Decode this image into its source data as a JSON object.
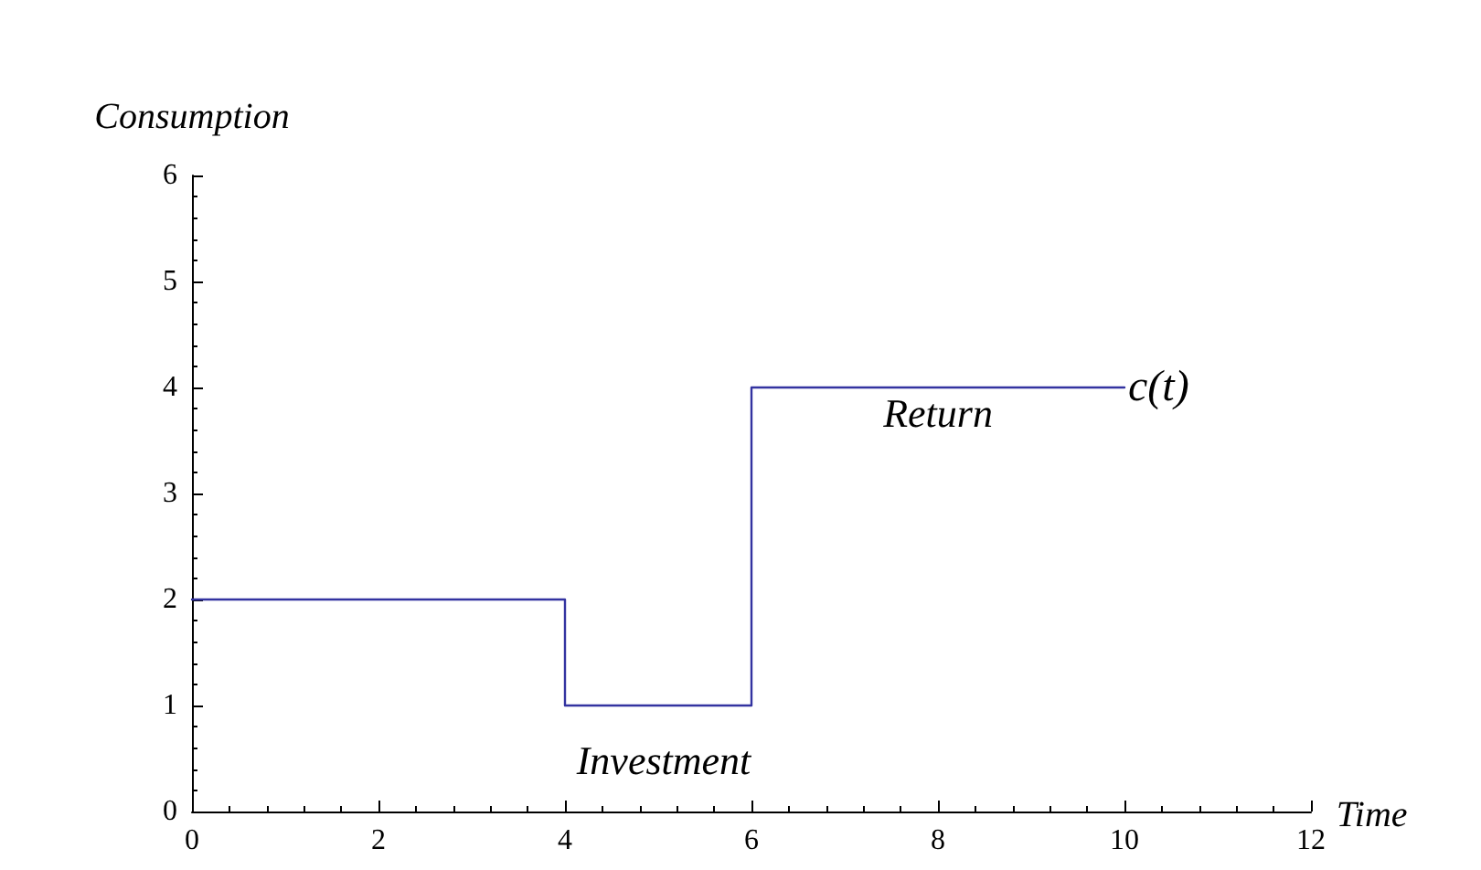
{
  "chart_data": {
    "type": "step",
    "xlabel": "Time",
    "ylabel": "Consumption",
    "x": [
      0,
      4,
      6,
      10
    ],
    "series": [
      {
        "name": "c(t)",
        "color": "#3333a0",
        "values": [
          2,
          1,
          4,
          4
        ]
      }
    ],
    "xlim": [
      0,
      12
    ],
    "xticks": [
      0,
      2,
      4,
      6,
      8,
      10,
      12
    ],
    "ylim": [
      0,
      6
    ],
    "yticks": [
      0,
      1,
      2,
      3,
      4,
      5,
      6
    ],
    "grid": false,
    "legend": false,
    "line_style": "solid",
    "annotations": [
      "Return",
      "Investment"
    ]
  }
}
